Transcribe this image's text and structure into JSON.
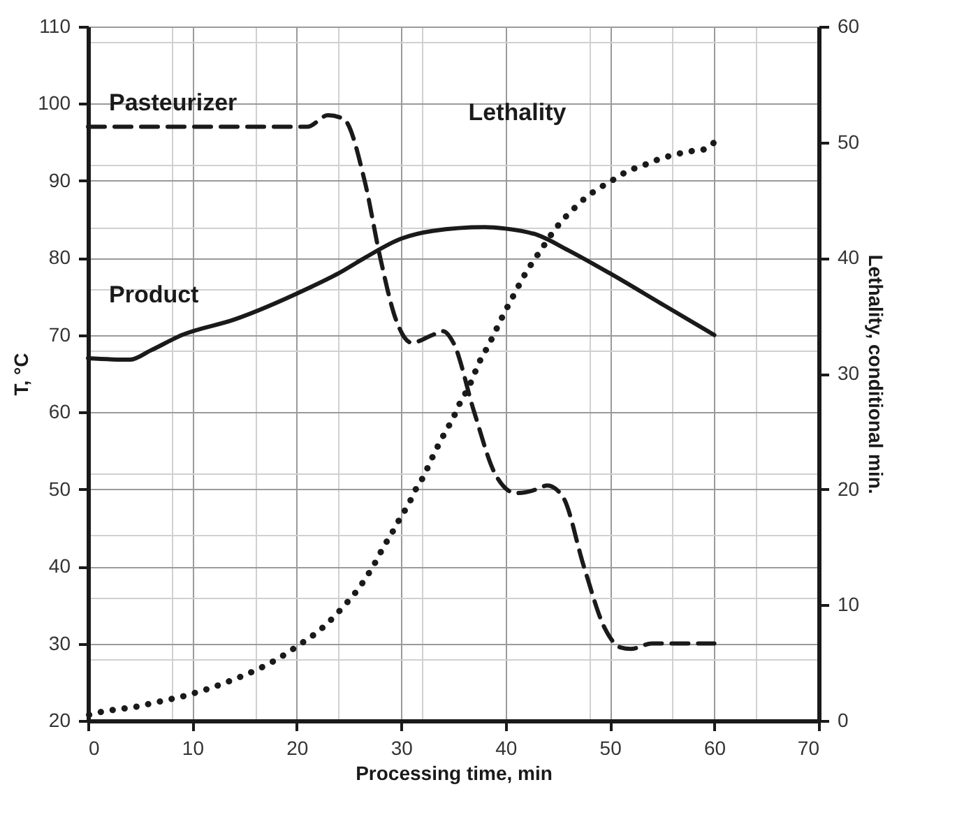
{
  "chart_data": {
    "type": "line",
    "xlabel": "Processing time, min",
    "ylabel": "T, °C",
    "y2label": "Lethality, conditional min.",
    "xlim": [
      0,
      70
    ],
    "xticks": [
      0,
      10,
      20,
      30,
      40,
      50,
      60,
      70
    ],
    "ylim": [
      20,
      110
    ],
    "yticks": [
      20,
      30,
      40,
      50,
      60,
      70,
      80,
      90,
      100,
      110
    ],
    "y2lim": [
      0,
      60
    ],
    "y2ticks": [
      0,
      10,
      20,
      30,
      40,
      50,
      60
    ],
    "grid": true,
    "marker": "none",
    "series": [
      {
        "name": "Pasteurizer",
        "color": "#1a1a1a",
        "line_style": "dashed",
        "x": [
          0,
          5,
          10,
          15,
          21,
          23,
          24.5,
          26.5,
          28,
          29.5,
          31,
          33,
          34,
          35,
          37,
          39,
          41,
          43,
          44,
          45.5,
          47.5,
          49.5,
          51,
          52,
          54,
          57,
          60
        ],
        "values": [
          97,
          97,
          97,
          97,
          97,
          98.5,
          98,
          90,
          80,
          72,
          69,
          70,
          70.5,
          69,
          60,
          52,
          49.5,
          50,
          50.5,
          49,
          40,
          32,
          29.5,
          29.3,
          30,
          30,
          30
        ]
      },
      {
        "name": "Product",
        "color": "#1a1a1a",
        "line_style": "solid",
        "x": [
          0,
          4,
          6,
          9,
          14,
          21,
          24,
          26.5,
          30,
          33,
          38,
          40,
          43,
          46,
          50,
          55,
          60
        ],
        "values": [
          67,
          66.8,
          68,
          70,
          72,
          76,
          78,
          80,
          82.5,
          83.5,
          84,
          83.8,
          83,
          81,
          78,
          74,
          70
        ]
      },
      {
        "name": "Lethality",
        "color": "#1a1a1a",
        "line_style": "dotted",
        "axis": "y2",
        "x": [
          0.1,
          1.5,
          3.0,
          4.6,
          6.1,
          7.6,
          9.1,
          10.6,
          12.0,
          13.5,
          14.9,
          16.4,
          17.7,
          19.0,
          20.3,
          21.6,
          22.8,
          23.9,
          24.9,
          25.9,
          26.8,
          27.6,
          28.3,
          29.1,
          29.9,
          30.7,
          31.4,
          32.2,
          32.8,
          33.5,
          34.2,
          35.0,
          35.6,
          36.4,
          37.6,
          38.4,
          39.1,
          39.8,
          40.5,
          41.2,
          42.0,
          42.8,
          43.7,
          44.6,
          45.6,
          46.7,
          47.8,
          49.1,
          50.4,
          51.7,
          53.2,
          54.6,
          56.1,
          57.6,
          59.1,
          60
        ],
        "values": [
          0.5,
          0.8,
          1.0,
          1.2,
          1.5,
          1.8,
          2.1,
          2.5,
          2.9,
          3.4,
          3.9,
          4.5,
          5.1,
          5.8,
          6.6,
          7.4,
          8.3,
          9.3,
          10.3,
          11.4,
          12.6,
          13.8,
          15.0,
          16.2,
          17.5,
          18.7,
          20.0,
          21.2,
          22.4,
          23.7,
          24.9,
          26.2,
          27.4,
          28.7,
          31.2,
          32.5,
          33.8,
          35.1,
          36.3,
          37.5,
          38.8,
          39.9,
          41.1,
          42.3,
          43.4,
          44.4,
          45.3,
          46.1,
          46.8,
          47.5,
          48.0,
          48.5,
          48.9,
          49.2,
          49.4,
          50
        ]
      }
    ]
  }
}
